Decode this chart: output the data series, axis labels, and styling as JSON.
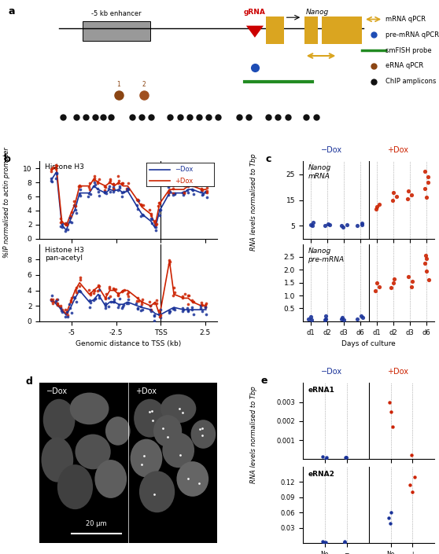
{
  "panel_a": {
    "enhancer_label": "-5 kb enhancer",
    "grna_label": "gRNA",
    "nanog_label": "Nanog",
    "legend_items": [
      "mRNA qPCR",
      "pre-mRNA qPCR",
      "smFISH probe",
      "eRNA qPCR",
      "ChIP amplicons"
    ],
    "numbered_dot_color": "#8B4513",
    "chip_dot_color": "#111111",
    "enhancer_box_color": "#999999",
    "exon_box_color": "#DAA520",
    "grna_color": "#CC0000",
    "arrow_color": "#DAA520",
    "smfish_color": "#228B22",
    "smfish_dot_color": "#1E4DB5"
  },
  "panel_b": {
    "blue_color": "#1A3399",
    "red_color": "#CC2200"
  },
  "panel_c": {
    "blue_color": "#1A3399",
    "red_color": "#CC2200"
  },
  "panel_e": {
    "blue_color": "#1A3399",
    "red_color": "#CC2200"
  },
  "background_color": "#ffffff"
}
